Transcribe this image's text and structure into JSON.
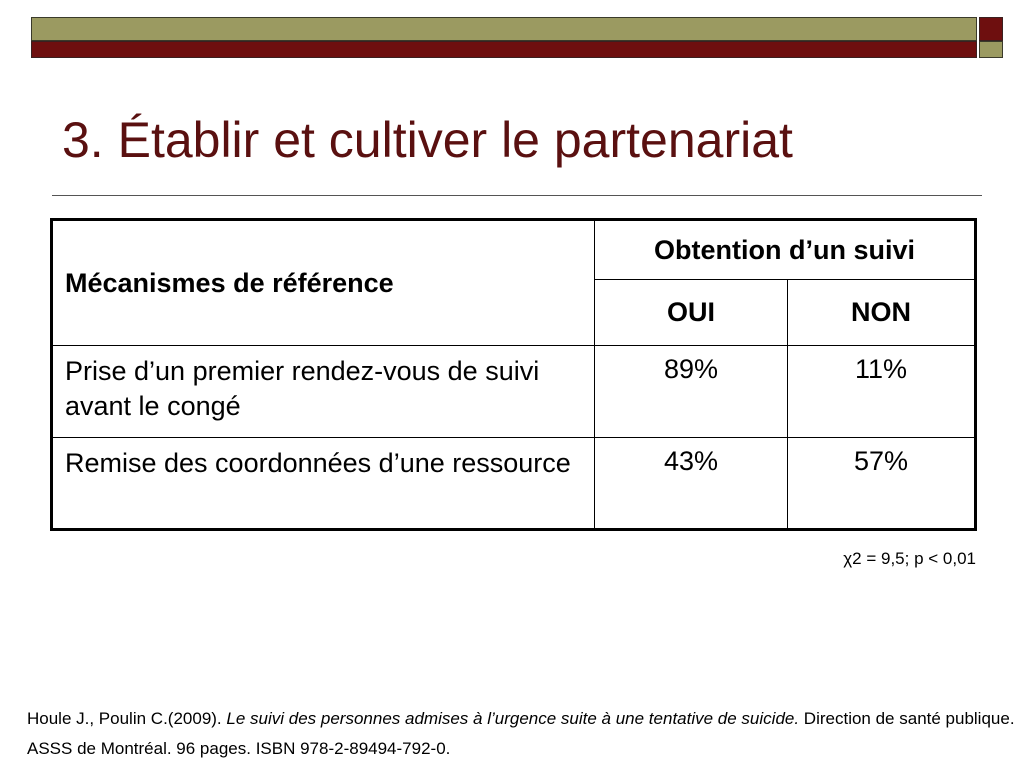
{
  "slide": {
    "title": "3. Établir et cultiver le partenariat"
  },
  "table": {
    "header_mechanisms": "Mécanismes de référence",
    "header_group": "Obtention d’un suivi",
    "header_yes": "OUI",
    "header_no": "NON",
    "rows": [
      {
        "label": "Prise d’un premier rendez-vous de suivi avant le congé",
        "oui": "89%",
        "non": "11%"
      },
      {
        "label": "Remise des coordonnées d’une ressource",
        "oui": "43%",
        "non": "57%"
      }
    ]
  },
  "statistic": "χ2  = 9,5; p < 0,01",
  "reference": {
    "authors": "Houle J., Poulin C.(2009). ",
    "title": "Le suivi des personnes admises à l’urgence suite à une tentative de suicide.",
    "publisher": " Direction de santé publique. ASSS de Montréal. 96 pages. ISBN 978-2-89494-792-0."
  },
  "colors": {
    "accent_maroon": "#6e0f0f",
    "accent_olive": "#9b9a61",
    "title_color": "#5a1010"
  }
}
